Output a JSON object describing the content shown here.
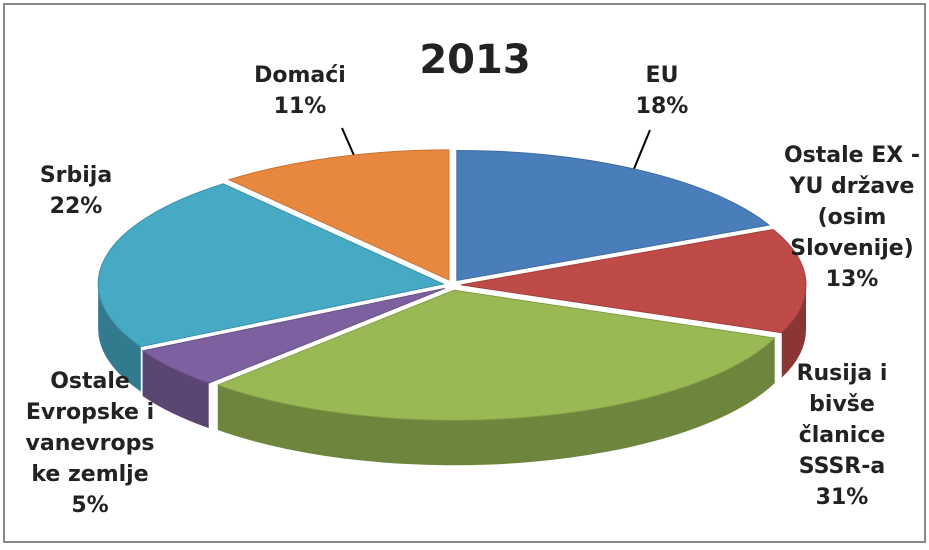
{
  "chart_data": {
    "type": "pie",
    "title": "2013",
    "categories": [
      "EU",
      "Ostale EX -\nYU države\n(osim\nSlovenije)",
      "Rusija i\nbivše\nčlanice\nSSSR-a",
      "Ostale\nEvropske i\nvanevrops\nke zemlje",
      "Srbija",
      "Domaći"
    ],
    "values": [
      18,
      13,
      31,
      5,
      22,
      11
    ],
    "value_labels": [
      "18%",
      "13%",
      "31%",
      "5%",
      "22%",
      "11%"
    ],
    "colors": [
      "#4a7ebb",
      "#be4b48",
      "#98b954",
      "#7d60a0",
      "#46aac5",
      "#e8883e"
    ]
  }
}
